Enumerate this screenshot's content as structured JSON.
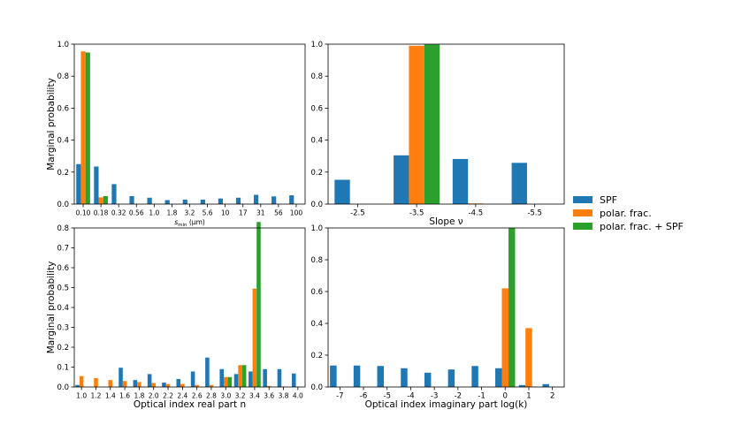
{
  "colors": {
    "SPF": "#1f77b4",
    "polar": "#ff7f0e",
    "combo": "#2ca02c"
  },
  "legend": {
    "placement": "right",
    "entries": [
      "SPF",
      "polar. frac.",
      "polar. frac. + SPF"
    ]
  },
  "chart_data": [
    {
      "type": "bar",
      "title": "",
      "xlabel_main": "s",
      "xlabel_sub": "min",
      "xlabel_unit": " (μm)",
      "ylabel": "Marginal probability",
      "ylim": [
        0,
        1.0
      ],
      "yticks": [
        "0.0",
        "0.2",
        "0.4",
        "0.6",
        "0.8",
        "1.0"
      ],
      "categories": [
        "0.10",
        "0.18",
        "0.32",
        "0.56",
        "1.0",
        "1.8",
        "3.2",
        "5.6",
        "10",
        "17",
        "31",
        "56",
        "100"
      ],
      "series": [
        {
          "name": "SPF",
          "values": [
            0.25,
            0.235,
            0.125,
            0.05,
            0.04,
            0.025,
            0.028,
            0.028,
            0.035,
            0.04,
            0.058,
            0.048,
            0.055
          ]
        },
        {
          "name": "polar. frac.",
          "values": [
            0.955,
            0.042,
            0,
            0,
            0,
            0,
            0,
            0,
            0,
            0,
            0,
            0,
            0
          ]
        },
        {
          "name": "polar. frac. + SPF",
          "values": [
            0.948,
            0.05,
            0,
            0,
            0,
            0,
            0,
            0,
            0,
            0,
            0,
            0,
            0
          ]
        }
      ]
    },
    {
      "type": "bar",
      "title": "",
      "xlabel": "Slope ν",
      "ylabel": "",
      "ylim": [
        0,
        1.0
      ],
      "yticks": [
        "0.0",
        "0.2",
        "0.4",
        "0.6",
        "0.8",
        "1.0"
      ],
      "categories": [
        "-2.5",
        "-3.5",
        "-4.5",
        "-5.5"
      ],
      "series": [
        {
          "name": "SPF",
          "values": [
            0.152,
            0.305,
            0.282,
            0.258
          ]
        },
        {
          "name": "polar. frac.",
          "values": [
            0,
            0.99,
            0.004,
            0
          ]
        },
        {
          "name": "polar. frac. + SPF",
          "values": [
            0,
            0.998,
            0,
            0
          ]
        }
      ]
    },
    {
      "type": "bar",
      "title": "",
      "xlabel": "Optical index real part n",
      "ylabel": "Marginal probability",
      "ylim": [
        0,
        0.8
      ],
      "yticks": [
        "0.0",
        "0.1",
        "0.2",
        "0.3",
        "0.4",
        "0.5",
        "0.6",
        "0.7",
        "0.8"
      ],
      "categories": [
        "1.0",
        "1.2",
        "1.4",
        "1.6",
        "1.8",
        "2.0",
        "2.2",
        "2.4",
        "2.6",
        "2.8",
        "3.0",
        "3.2",
        "3.4",
        "3.6",
        "3.8",
        "4.0"
      ],
      "series": [
        {
          "name": "SPF",
          "values": [
            0.01,
            0.0,
            0.0,
            0.097,
            0.035,
            0.065,
            0.022,
            0.04,
            0.078,
            0.148,
            0.09,
            0.065,
            0.078,
            0.09,
            0.09,
            0.068
          ]
        },
        {
          "name": "polar. frac.",
          "values": [
            0.055,
            0.045,
            0.035,
            0.03,
            0.025,
            0.02,
            0.015,
            0.015,
            0.01,
            0.01,
            0.05,
            0.11,
            0.495,
            0.005,
            0.002,
            0.001
          ]
        },
        {
          "name": "polar. frac. + SPF",
          "values": [
            0,
            0,
            0,
            0,
            0,
            0,
            0,
            0,
            0,
            0,
            0.05,
            0.11,
            0.83,
            0,
            0,
            0
          ]
        }
      ]
    },
    {
      "type": "bar",
      "title": "",
      "xlabel": "Optical index imaginary part log(k)",
      "ylabel": "",
      "ylim": [
        0,
        1.0
      ],
      "yticks": [
        "0.0",
        "0.2",
        "0.4",
        "0.6",
        "0.8",
        "1.0"
      ],
      "categories": [
        "-7",
        "-6",
        "-5",
        "-4",
        "-3",
        "-2",
        "-1",
        "0",
        "1",
        "2"
      ],
      "series": [
        {
          "name": "SPF",
          "values": [
            0.135,
            0.135,
            0.132,
            0.118,
            0.09,
            0.11,
            0.132,
            0.118,
            0.012,
            0.018
          ]
        },
        {
          "name": "polar. frac.",
          "values": [
            0,
            0,
            0,
            0,
            0,
            0,
            0,
            0.62,
            0.37,
            0.002
          ]
        },
        {
          "name": "polar. frac. + SPF",
          "values": [
            0,
            0,
            0,
            0,
            0,
            0,
            0,
            1.0,
            0.002,
            0
          ]
        }
      ]
    }
  ]
}
